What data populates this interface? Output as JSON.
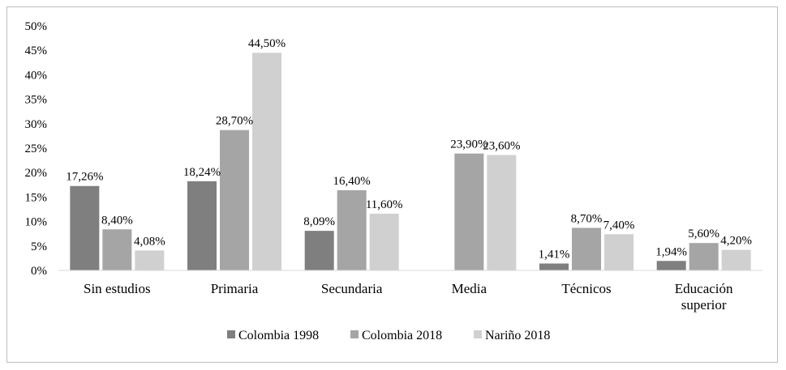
{
  "chart_data": {
    "type": "bar",
    "title": "",
    "xlabel": "",
    "ylabel": "",
    "ylim": [
      0,
      50
    ],
    "y_ticks": [
      "0%",
      "5%",
      "10%",
      "15%",
      "20%",
      "25%",
      "30%",
      "35%",
      "40%",
      "45%",
      "50%"
    ],
    "grid": false,
    "legend_position": "bottom",
    "categories": [
      [
        "Sin estudios"
      ],
      [
        "Primaria"
      ],
      [
        "Secundaria"
      ],
      [
        "Media"
      ],
      [
        "Técnicos"
      ],
      [
        "Educación",
        "superior"
      ]
    ],
    "series": [
      {
        "name": "Colombia 1998",
        "color": "#7f7f7f",
        "values": [
          17.26,
          18.24,
          8.09,
          null,
          1.41,
          1.94
        ],
        "labels": [
          "17,26%",
          "18,24%",
          "8,09%",
          "",
          "1,41%",
          "1,94%"
        ]
      },
      {
        "name": "Colombia 2018",
        "color": "#a5a5a5",
        "values": [
          8.4,
          28.7,
          16.4,
          23.9,
          8.7,
          5.6
        ],
        "labels": [
          "8,40%",
          "28,70%",
          "16,40%",
          "23,90%",
          "8,70%",
          "5,60%"
        ]
      },
      {
        "name": "Nariño 2018",
        "color": "#d0d0d0",
        "values": [
          4.08,
          44.5,
          11.6,
          23.6,
          7.4,
          4.2
        ],
        "labels": [
          "4,08%",
          "44,50%",
          "11,60%",
          "23,60%",
          "7,40%",
          "4,20%"
        ]
      }
    ]
  }
}
